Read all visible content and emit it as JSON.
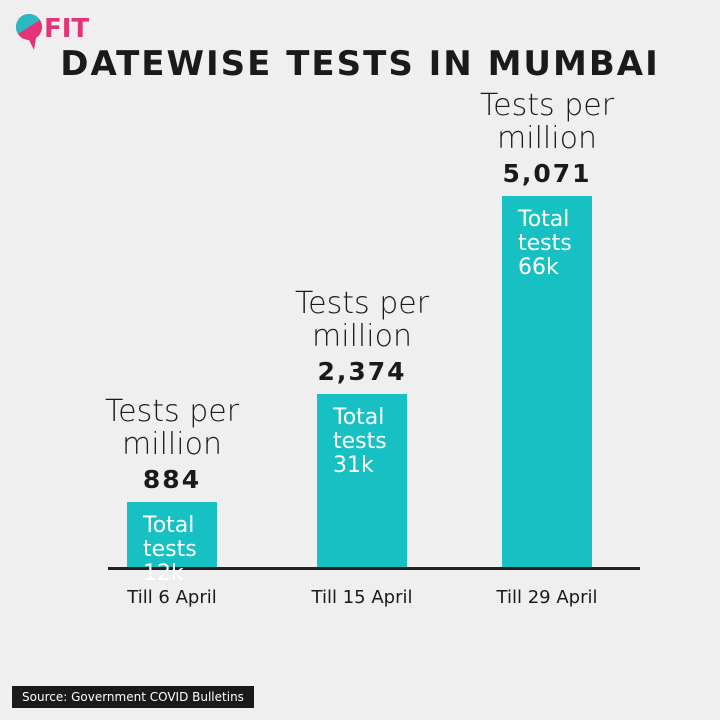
{
  "logo": "FIT",
  "source": "Source: Government COVID Bulletins",
  "chart_data": {
    "type": "bar",
    "title": "DATEWISE TESTS IN MUMBAI",
    "categories": [
      "Till 6 April",
      "Till 15 April",
      "Till 29 April"
    ],
    "values": [
      884,
      2374,
      5071
    ],
    "value_labels": [
      "884",
      "2,374",
      "5,071"
    ],
    "value_title": "Tests per million",
    "bar_texts": [
      "Total tests 12k",
      "Total tests 31k",
      "Total tests 66k"
    ],
    "color": "#17c0c3",
    "ylim": [
      0,
      5200
    ]
  }
}
